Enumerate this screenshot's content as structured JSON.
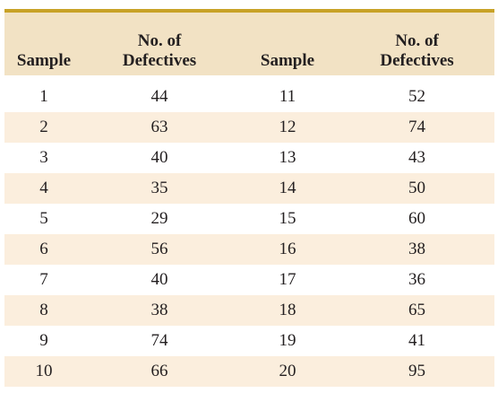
{
  "headers": {
    "sample": "Sample",
    "defectives": "No. of\nDefectives"
  },
  "rows": [
    {
      "s1": "1",
      "d1": "44",
      "s2": "11",
      "d2": "52"
    },
    {
      "s1": "2",
      "d1": "63",
      "s2": "12",
      "d2": "74"
    },
    {
      "s1": "3",
      "d1": "40",
      "s2": "13",
      "d2": "43"
    },
    {
      "s1": "4",
      "d1": "35",
      "s2": "14",
      "d2": "50"
    },
    {
      "s1": "5",
      "d1": "29",
      "s2": "15",
      "d2": "60"
    },
    {
      "s1": "6",
      "d1": "56",
      "s2": "16",
      "d2": "38"
    },
    {
      "s1": "7",
      "d1": "40",
      "s2": "17",
      "d2": "36"
    },
    {
      "s1": "8",
      "d1": "38",
      "s2": "18",
      "d2": "65"
    },
    {
      "s1": "9",
      "d1": "74",
      "s2": "19",
      "d2": "41"
    },
    {
      "s1": "10",
      "d1": "66",
      "s2": "20",
      "d2": "95"
    }
  ]
}
